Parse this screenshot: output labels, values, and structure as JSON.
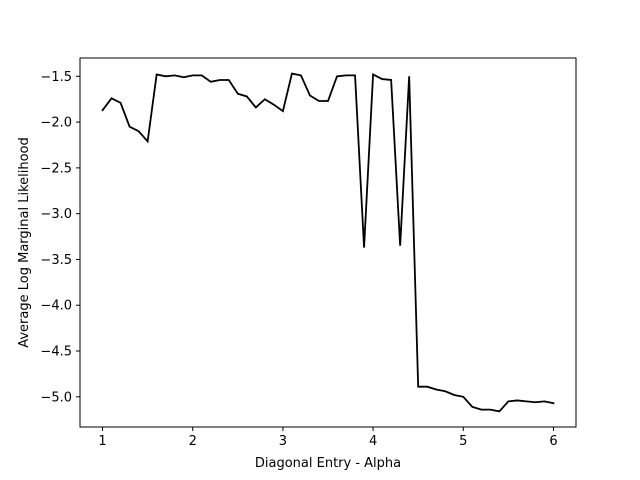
{
  "chart_data": {
    "type": "line",
    "title": "",
    "xlabel": "Diagonal Entry - Alpha",
    "ylabel": "Average Log Marginal Likelihood",
    "xlim": [
      0.75,
      6.25
    ],
    "ylim": [
      -5.33,
      -1.3
    ],
    "x_ticks": [
      1,
      2,
      3,
      4,
      5,
      6
    ],
    "x_tick_labels": [
      "1",
      "2",
      "3",
      "4",
      "5",
      "6"
    ],
    "y_ticks": [
      -1.5,
      -2.0,
      -2.5,
      -3.0,
      -3.5,
      -4.0,
      -4.5,
      -5.0
    ],
    "y_tick_labels": [
      "−1.5",
      "−2.0",
      "−2.5",
      "−3.0",
      "−3.5",
      "−4.0",
      "−4.5",
      "−5.0"
    ],
    "grid": false,
    "line_color": "#000000",
    "series": [
      {
        "x": [
          1.0,
          1.1,
          1.2,
          1.3,
          1.4,
          1.5,
          1.6,
          1.7,
          1.8,
          1.9,
          2.0,
          2.1,
          2.2,
          2.3,
          2.4,
          2.5,
          2.6,
          2.7,
          2.8,
          2.9,
          3.0,
          3.1,
          3.2,
          3.3,
          3.4,
          3.5,
          3.6,
          3.7,
          3.8,
          3.9,
          4.0,
          4.1,
          4.2,
          4.3,
          4.4,
          4.5,
          4.6,
          4.7,
          4.8,
          4.9,
          5.0,
          5.1,
          5.2,
          5.3,
          5.4,
          5.5,
          5.6,
          5.7,
          5.8,
          5.9,
          6.0
        ],
        "y": [
          -1.87,
          -1.74,
          -1.79,
          -2.05,
          -2.1,
          -2.21,
          -1.48,
          -1.5,
          -1.49,
          -1.51,
          -1.49,
          -1.49,
          -1.56,
          -1.54,
          -1.54,
          -1.69,
          -1.72,
          -1.84,
          -1.75,
          -1.81,
          -1.88,
          -1.47,
          -1.49,
          -1.71,
          -1.77,
          -1.77,
          -1.5,
          -1.49,
          -1.49,
          -3.37,
          -1.48,
          -1.53,
          -1.54,
          -3.35,
          -1.5,
          -4.89,
          -4.89,
          -4.92,
          -4.94,
          -4.98,
          -5.0,
          -5.11,
          -5.14,
          -5.14,
          -5.16,
          -5.05,
          -5.04,
          -5.05,
          -5.06,
          -5.05,
          -5.07
        ]
      }
    ]
  }
}
